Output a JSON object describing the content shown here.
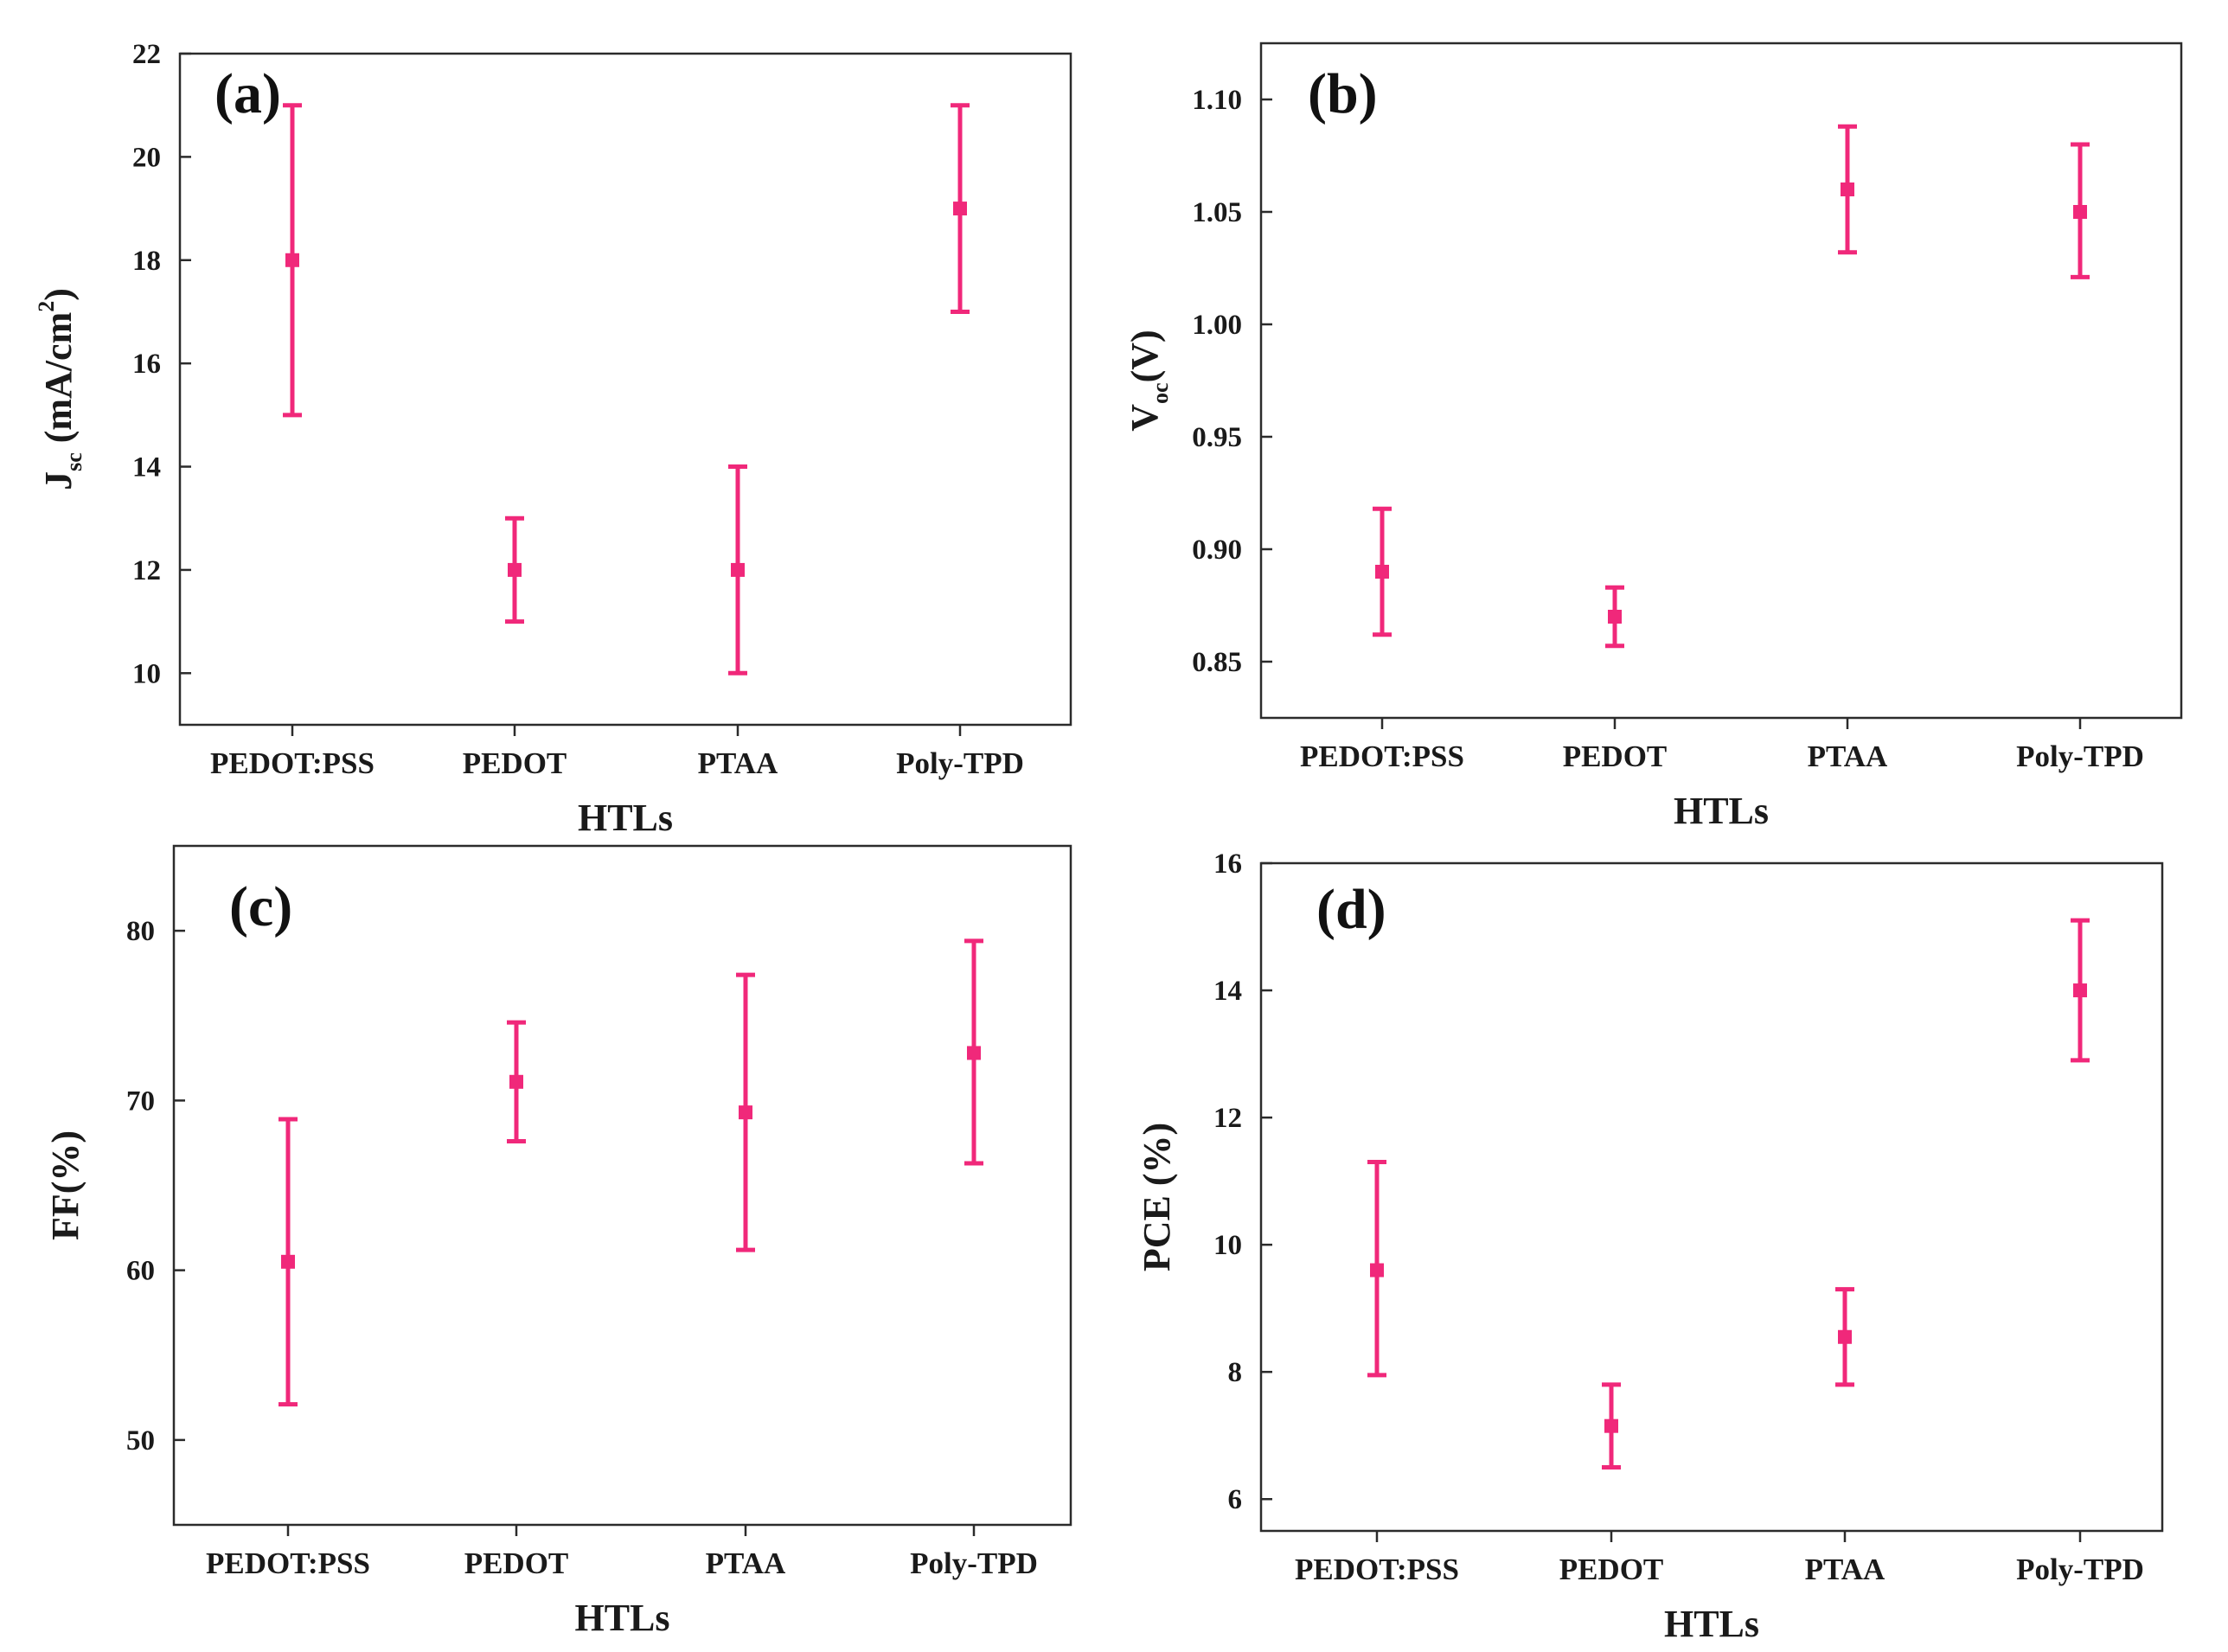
{
  "chart_data": [
    {
      "type": "errorbar",
      "panel_label": "(a)",
      "categories": [
        "PEDOT:PSS",
        "PEDOT",
        "PTAA",
        "Poly-TPD"
      ],
      "series": [
        {
          "name": "Jsc",
          "values": [
            18,
            12,
            12,
            19
          ],
          "err_low": [
            15,
            11,
            10,
            17
          ],
          "err_high": [
            21,
            13,
            14,
            21
          ]
        }
      ],
      "xlabel": "HTLs",
      "ylabel": {
        "main": "J",
        "sub": "sc",
        "unit_pre": " (mA/cm",
        "sup": "2",
        "unit_post": ")"
      },
      "ylim": [
        9,
        22
      ],
      "yticks": [
        10,
        12,
        14,
        16,
        18,
        20,
        22
      ],
      "ytick_labels": [
        "10",
        "12",
        "14",
        "16",
        "18",
        "20",
        "22"
      ],
      "marker_color": "#f0287a"
    },
    {
      "type": "errorbar",
      "panel_label": "(b)",
      "categories": [
        "PEDOT:PSS",
        "PEDOT",
        "PTAA",
        "Poly-TPD"
      ],
      "series": [
        {
          "name": "Voc",
          "values": [
            0.89,
            0.87,
            1.06,
            1.05
          ],
          "err_low": [
            0.862,
            0.857,
            1.032,
            1.021
          ],
          "err_high": [
            0.918,
            0.883,
            1.088,
            1.08
          ]
        }
      ],
      "xlabel": "HTLs",
      "ylabel": {
        "main": "V",
        "sub": "oc",
        "unit_pre": "(V)",
        "sup": "",
        "unit_post": ""
      },
      "ylim": [
        0.825,
        1.125
      ],
      "yticks": [
        0.85,
        0.9,
        0.95,
        1.0,
        1.05,
        1.1
      ],
      "ytick_labels": [
        "0.85",
        "0.90",
        "0.95",
        "1.00",
        "1.05",
        "1.10"
      ],
      "marker_color": "#f0287a"
    },
    {
      "type": "errorbar",
      "panel_label": "(c)",
      "categories": [
        "PEDOT:PSS",
        "PEDOT",
        "PTAA",
        "Poly-TPD"
      ],
      "series": [
        {
          "name": "FF",
          "values": [
            60.5,
            71.1,
            69.3,
            72.8
          ],
          "err_low": [
            52.1,
            67.6,
            61.2,
            66.3
          ],
          "err_high": [
            68.9,
            74.6,
            77.4,
            79.4
          ]
        }
      ],
      "xlabel": "HTLs",
      "ylabel": {
        "main": "FF(%)",
        "sub": "",
        "unit_pre": "",
        "sup": "",
        "unit_post": ""
      },
      "ylim": [
        45,
        85
      ],
      "yticks": [
        50,
        60,
        70,
        80
      ],
      "ytick_labels": [
        "50",
        "60",
        "70",
        "80"
      ],
      "marker_color": "#f0287a"
    },
    {
      "type": "errorbar",
      "panel_label": "(d)",
      "categories": [
        "PEDOT:PSS",
        "PEDOT",
        "PTAA",
        "Poly-TPD"
      ],
      "series": [
        {
          "name": "PCE",
          "values": [
            9.6,
            7.15,
            8.55,
            14.0
          ],
          "err_low": [
            7.95,
            6.5,
            7.8,
            12.9
          ],
          "err_high": [
            11.3,
            7.8,
            9.3,
            15.1
          ]
        }
      ],
      "xlabel": "HTLs",
      "ylabel": {
        "main": "PCE (%)",
        "sub": "",
        "unit_pre": "",
        "sup": "",
        "unit_post": ""
      },
      "ylim": [
        5.5,
        16
      ],
      "yticks": [
        6,
        8,
        10,
        12,
        14,
        16
      ],
      "ytick_labels": [
        "6",
        "8",
        "10",
        "12",
        "14",
        "16"
      ],
      "marker_color": "#f0287a"
    }
  ]
}
